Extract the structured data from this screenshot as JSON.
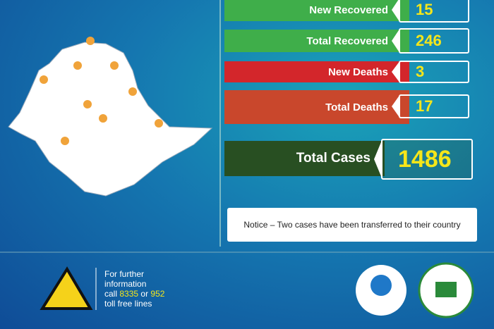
{
  "stats": [
    {
      "label": "New Recovered",
      "value": "15"
    },
    {
      "label": "Total Recovered",
      "value": "246"
    },
    {
      "label": "New Deaths",
      "value": "3"
    },
    {
      "label": "Total Deaths",
      "value": "17"
    },
    {
      "label": "Total Cases",
      "value": "1486"
    }
  ],
  "notice": "Notice – Two cases have been transferred to their country",
  "footer": {
    "line1": "For further",
    "line2": "information",
    "call": "call",
    "number1": "8335",
    "or": "or",
    "number2": "952",
    "line4": "toll free lines"
  }
}
